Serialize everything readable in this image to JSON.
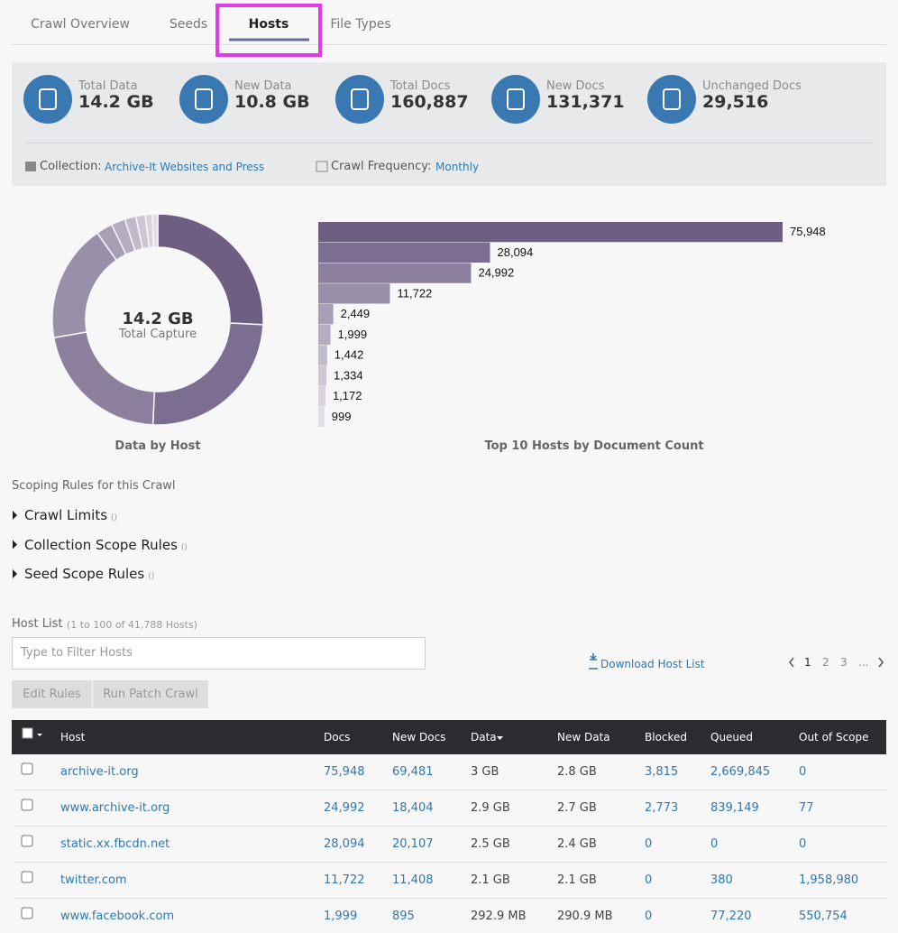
{
  "tabs": {
    "items": [
      "Crawl Overview",
      "Seeds",
      "Hosts",
      "File Types"
    ],
    "active": 2
  },
  "stats": [
    {
      "label": "Total Data",
      "value": "14.2 GB"
    },
    {
      "label": "New Data",
      "value": "10.8 GB"
    },
    {
      "label": "Total Docs",
      "value": "160,887"
    },
    {
      "label": "New Docs",
      "value": "131,371"
    },
    {
      "label": "Unchanged Docs",
      "value": "29,516"
    }
  ],
  "collection": {
    "label": "Collection:",
    "value": "Archive-It Websites and Press"
  },
  "frequency": {
    "label": "Crawl Frequency:",
    "value": "Monthly"
  },
  "chart_data": [
    {
      "type": "pie",
      "donut": true,
      "title": "Data by Host",
      "center_value": "14.2 GB",
      "center_label": "Total Capture",
      "values": [
        3,
        2.9,
        2.5,
        2.1,
        0.29,
        0.25,
        0.2,
        0.17,
        0.12,
        0.1
      ],
      "colors": [
        "#6d5e82",
        "#7c6e90",
        "#8c809e",
        "#9a8fa9",
        "#a89eb5",
        "#b4acc0",
        "#c0b9ca",
        "#ccc6d5",
        "#d7d2de",
        "#e1dde6"
      ]
    },
    {
      "type": "bar",
      "orientation": "horizontal",
      "title": "Top 10 Hosts by Document Count",
      "values": [
        75948,
        28094,
        24992,
        11722,
        2449,
        1999,
        1442,
        1334,
        1172,
        999
      ],
      "value_labels": [
        "75,948",
        "28,094",
        "24,992",
        "11,722",
        "2,449",
        "1,999",
        "1,442",
        "1,334",
        "1,172",
        "999"
      ],
      "colors": [
        "#6d5e82",
        "#7c6e90",
        "#8c809e",
        "#9a8fa9",
        "#a89eb5",
        "#b4acc0",
        "#c0b9ca",
        "#ccc6d5",
        "#d7d2de",
        "#e1dde6"
      ]
    }
  ],
  "scoping": {
    "title": "Scoping Rules for this Crawl",
    "items": [
      {
        "label": "Crawl Limits",
        "note": "()"
      },
      {
        "label": "Collection Scope Rules",
        "note": "()"
      },
      {
        "label": "Seed Scope Rules",
        "note": "()"
      }
    ]
  },
  "host_list": {
    "title": "Host List",
    "range": "(1 to 100 of 41,788 Hosts)",
    "filter_placeholder": "Type to Filter Hosts",
    "download": "Download Host List",
    "pages": [
      "1",
      "2",
      "3",
      "..."
    ],
    "buttons": [
      "Edit Rules",
      "Run Patch Crawl"
    ],
    "columns": [
      "Host",
      "Docs",
      "New Docs",
      "Data",
      "New Data",
      "Blocked",
      "Queued",
      "Out of Scope"
    ],
    "rows": [
      [
        "archive-it.org",
        "75,948",
        "69,481",
        "3 GB",
        "2.8 GB",
        "3,815",
        "2,669,845",
        "0"
      ],
      [
        "www.archive-it.org",
        "24,992",
        "18,404",
        "2.9 GB",
        "2.7 GB",
        "2,773",
        "839,149",
        "77"
      ],
      [
        "static.xx.fbcdn.net",
        "28,094",
        "20,107",
        "2.5 GB",
        "2.4 GB",
        "0",
        "0",
        "0"
      ],
      [
        "twitter.com",
        "11,722",
        "11,408",
        "2.1 GB",
        "2.1 GB",
        "0",
        "380",
        "1,958,980"
      ],
      [
        "www.facebook.com",
        "1,999",
        "895",
        "292.9 MB",
        "290.9 MB",
        "0",
        "77,220",
        "550,754"
      ]
    ]
  }
}
